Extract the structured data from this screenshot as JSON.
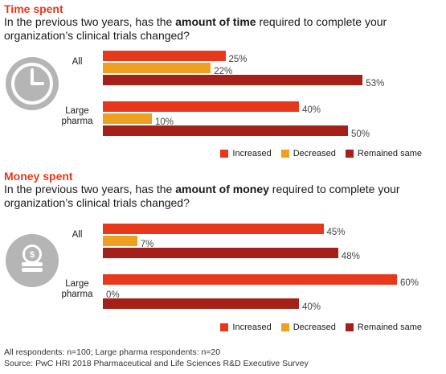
{
  "colors": {
    "increased": "#e8381c",
    "decreased": "#f0a020",
    "remained_same": "#a52019",
    "icon": "#b5b5b5"
  },
  "time": {
    "title": "Time spent",
    "question_pre": "In the previous two years, has the ",
    "question_bold": "amount of time",
    "question_post": " required to complete your organization’s clinical trials changed?",
    "icon": "clock-icon"
  },
  "money": {
    "title": "Money spent",
    "question_pre": "In the previous two years, has the ",
    "question_bold": "amount of money",
    "question_post": " required to complete your organization’s clinical trials changed?",
    "icon": "coins-icon"
  },
  "legend": {
    "increased": "Increased",
    "decreased": "Decreased",
    "remained_same": "Remained same"
  },
  "chart_data": [
    {
      "type": "bar",
      "categories": [
        "All",
        "Large pharma"
      ],
      "series": [
        {
          "name": "Increased",
          "values": [
            25,
            40
          ]
        },
        {
          "name": "Decreased",
          "values": [
            22,
            10
          ]
        },
        {
          "name": "Remained same",
          "values": [
            53,
            50
          ]
        }
      ],
      "value_suffix": "%",
      "xlim": [
        0,
        60
      ]
    },
    {
      "type": "bar",
      "categories": [
        "All",
        "Large pharma"
      ],
      "series": [
        {
          "name": "Increased",
          "values": [
            45,
            60
          ]
        },
        {
          "name": "Decreased",
          "values": [
            7,
            0
          ]
        },
        {
          "name": "Remained same",
          "values": [
            48,
            40
          ]
        }
      ],
      "value_suffix": "%",
      "xlim": [
        0,
        60
      ]
    }
  ],
  "footer": {
    "line1": "All respondents: n=100; Large pharma respondents: n=20",
    "line2": "Source: PwC HRI 2018 Pharmaceutical and Life Sciences R&D Executive Survey"
  }
}
